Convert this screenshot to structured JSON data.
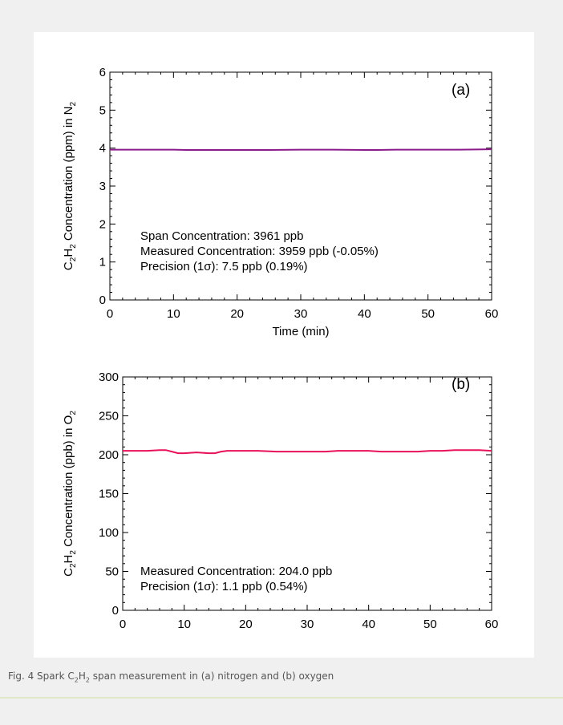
{
  "chart_data": [
    {
      "type": "line",
      "panel_label": "(a)",
      "xlabel": "Time (min)",
      "ylabel": {
        "pre": "C",
        "s1": "2",
        "mid": "H",
        "s2": "2",
        "post": " Concentration (ppm) in N",
        "s3": "2"
      },
      "xlim": [
        0,
        60
      ],
      "ylim": [
        0,
        6
      ],
      "xticks": [
        0,
        10,
        20,
        30,
        40,
        50,
        60
      ],
      "yticks": [
        0,
        1,
        2,
        3,
        4,
        5,
        6
      ],
      "annotations": [
        "Span Concentration: 3961 ppb",
        "Measured Concentration: 3959 ppb (-0.05%)",
        "Precision (1σ): 7.5 ppb (0.19%)"
      ],
      "series": [
        {
          "color": "#8b1a8b",
          "x": [
            0,
            5,
            10,
            12,
            15,
            20,
            25,
            30,
            35,
            40,
            42,
            45,
            50,
            55,
            60
          ],
          "y": [
            3.96,
            3.96,
            3.96,
            3.95,
            3.95,
            3.95,
            3.95,
            3.96,
            3.96,
            3.95,
            3.95,
            3.96,
            3.96,
            3.96,
            3.97
          ]
        }
      ]
    },
    {
      "type": "line",
      "panel_label": "(b)",
      "xlabel": "",
      "ylabel": {
        "pre": "C",
        "s1": "2",
        "mid": "H",
        "s2": "2",
        "post": " Concentration (ppb) in O",
        "s3": "2"
      },
      "xlim": [
        0,
        60
      ],
      "ylim": [
        0,
        300
      ],
      "xticks": [
        0,
        10,
        20,
        30,
        40,
        50,
        60
      ],
      "yticks": [
        0,
        50,
        100,
        150,
        200,
        250,
        300
      ],
      "annotations": [
        "Measured Concentration: 204.0 ppb",
        "Precision (1σ): 1.1 ppb (0.54%)"
      ],
      "series": [
        {
          "color": "#e8115a",
          "x": [
            0,
            2,
            4,
            6,
            7,
            8,
            9,
            10,
            12,
            14,
            15,
            16,
            17,
            20,
            22,
            25,
            28,
            30,
            33,
            35,
            38,
            40,
            42,
            45,
            48,
            50,
            52,
            54,
            56,
            58,
            60
          ],
          "y": [
            205,
            205,
            205,
            206,
            206,
            204,
            202,
            202,
            203,
            202,
            202,
            204,
            205,
            205,
            205,
            204,
            204,
            204,
            204,
            205,
            205,
            205,
            204,
            204,
            204,
            205,
            205,
            206,
            206,
            206,
            205
          ]
        }
      ]
    }
  ],
  "caption": {
    "pre": "Fig. 4 Spark C",
    "s1": "2",
    "mid": "H",
    "s2": "2",
    "post": " span measurement in (a) nitrogen and (b) oxygen"
  }
}
